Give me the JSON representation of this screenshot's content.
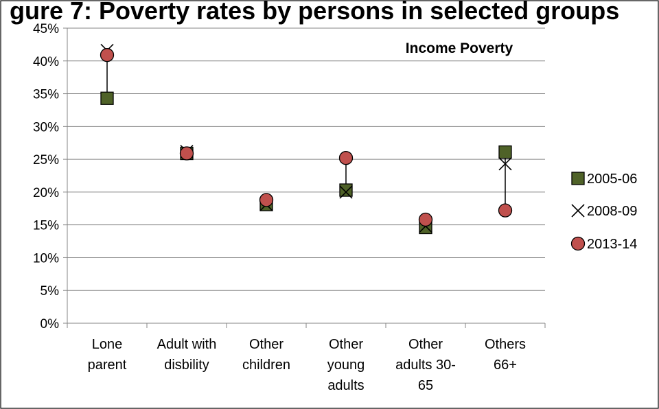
{
  "page_title_fragment": "gure 7: Poverty rates by persons in selected groups",
  "chart_data": {
    "type": "scatter",
    "title": "Income Poverty",
    "xlabel": "",
    "ylabel": "",
    "categories": [
      [
        "Lone",
        "parent"
      ],
      [
        "Adult with",
        "disbility"
      ],
      [
        "Other",
        "children"
      ],
      [
        "Other",
        "young",
        "adults"
      ],
      [
        "Other",
        "adults 30-",
        "65"
      ],
      [
        "Others",
        "66+"
      ]
    ],
    "ylim": [
      0,
      45
    ],
    "yticks": [
      "0%",
      "5%",
      "10%",
      "15%",
      "20%",
      "25%",
      "30%",
      "35%",
      "40%",
      "45%"
    ],
    "grid": true,
    "legend_position": "right",
    "series": [
      {
        "name": "2005-06",
        "marker": "square",
        "color": "#4f6228",
        "values": [
          34.3,
          25.9,
          18.1,
          20.3,
          14.6,
          26.1
        ]
      },
      {
        "name": "2008-09",
        "marker": "x",
        "color": "#000000",
        "values": [
          41.6,
          26.2,
          18.1,
          20.0,
          14.8,
          24.3
        ]
      },
      {
        "name": "2013-14",
        "marker": "circle",
        "color": "#c0504d",
        "values": [
          40.9,
          25.9,
          18.8,
          25.2,
          15.8,
          17.2
        ]
      }
    ]
  }
}
